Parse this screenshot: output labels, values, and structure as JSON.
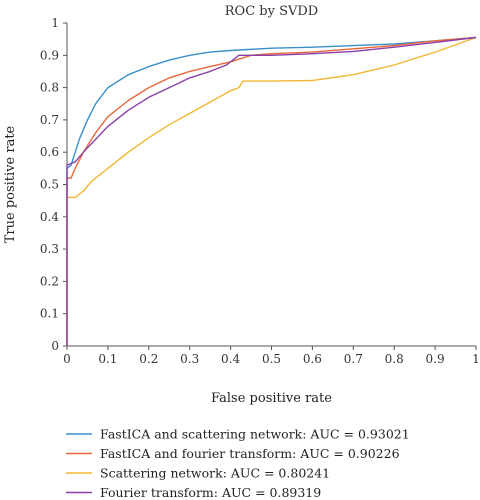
{
  "chart_data": {
    "type": "line",
    "title": "ROC by SVDD",
    "xlabel": "False positive rate",
    "ylabel": "True positive rate",
    "xlim": [
      0,
      1
    ],
    "ylim": [
      0,
      1
    ],
    "x_ticks": [
      "0",
      "0.1",
      "0.2",
      "0.3",
      "0.4",
      "0.5",
      "0.6",
      "0.7",
      "0.8",
      "0.9",
      "1"
    ],
    "y_ticks": [
      "0",
      "0.1",
      "0.2",
      "0.3",
      "0.4",
      "0.5",
      "0.6",
      "0.7",
      "0.8",
      "0.9",
      "1"
    ],
    "grid": false,
    "legend_position": "bottom",
    "series": [
      {
        "name": "FastICA and scattering network: AUC = 0.93021",
        "color": "#3a8fc7",
        "points": [
          [
            0,
            0
          ],
          [
            0,
            0.55
          ],
          [
            0.01,
            0.56
          ],
          [
            0.02,
            0.6
          ],
          [
            0.03,
            0.64
          ],
          [
            0.05,
            0.7
          ],
          [
            0.07,
            0.75
          ],
          [
            0.1,
            0.8
          ],
          [
            0.15,
            0.84
          ],
          [
            0.2,
            0.865
          ],
          [
            0.25,
            0.885
          ],
          [
            0.3,
            0.9
          ],
          [
            0.35,
            0.91
          ],
          [
            0.4,
            0.915
          ],
          [
            0.5,
            0.922
          ],
          [
            0.6,
            0.925
          ],
          [
            0.7,
            0.93
          ],
          [
            0.8,
            0.935
          ],
          [
            0.9,
            0.945
          ],
          [
            1.0,
            0.955
          ]
        ]
      },
      {
        "name": "FastICA and fourier transform: AUC = 0.90226",
        "color": "#e8683a",
        "points": [
          [
            0,
            0
          ],
          [
            0,
            0.52
          ],
          [
            0.01,
            0.52
          ],
          [
            0.02,
            0.55
          ],
          [
            0.04,
            0.6
          ],
          [
            0.07,
            0.66
          ],
          [
            0.1,
            0.71
          ],
          [
            0.15,
            0.76
          ],
          [
            0.2,
            0.8
          ],
          [
            0.25,
            0.83
          ],
          [
            0.3,
            0.85
          ],
          [
            0.35,
            0.865
          ],
          [
            0.4,
            0.88
          ],
          [
            0.45,
            0.9
          ],
          [
            0.5,
            0.905
          ],
          [
            0.6,
            0.91
          ],
          [
            0.7,
            0.92
          ],
          [
            0.8,
            0.93
          ],
          [
            0.9,
            0.945
          ],
          [
            1.0,
            0.955
          ]
        ]
      },
      {
        "name": "Scattering network: AUC = 0.80241",
        "color": "#f2b735",
        "points": [
          [
            0,
            0
          ],
          [
            0,
            0.46
          ],
          [
            0.02,
            0.46
          ],
          [
            0.04,
            0.48
          ],
          [
            0.06,
            0.51
          ],
          [
            0.1,
            0.55
          ],
          [
            0.15,
            0.6
          ],
          [
            0.2,
            0.645
          ],
          [
            0.25,
            0.685
          ],
          [
            0.3,
            0.72
          ],
          [
            0.35,
            0.755
          ],
          [
            0.4,
            0.79
          ],
          [
            0.42,
            0.8
          ],
          [
            0.43,
            0.82
          ],
          [
            0.5,
            0.82
          ],
          [
            0.6,
            0.822
          ],
          [
            0.7,
            0.84
          ],
          [
            0.8,
            0.87
          ],
          [
            0.9,
            0.91
          ],
          [
            1.0,
            0.955
          ]
        ]
      },
      {
        "name": "Fourier transform: AUC = 0.89319",
        "color": "#8b3fa8",
        "points": [
          [
            0,
            0
          ],
          [
            0,
            0.56
          ],
          [
            0.02,
            0.57
          ],
          [
            0.04,
            0.6
          ],
          [
            0.07,
            0.64
          ],
          [
            0.1,
            0.68
          ],
          [
            0.15,
            0.73
          ],
          [
            0.2,
            0.77
          ],
          [
            0.25,
            0.8
          ],
          [
            0.3,
            0.83
          ],
          [
            0.35,
            0.85
          ],
          [
            0.39,
            0.87
          ],
          [
            0.42,
            0.9
          ],
          [
            0.45,
            0.9
          ],
          [
            0.5,
            0.9
          ],
          [
            0.6,
            0.905
          ],
          [
            0.7,
            0.912
          ],
          [
            0.8,
            0.925
          ],
          [
            0.9,
            0.94
          ],
          [
            1.0,
            0.955
          ]
        ]
      }
    ]
  }
}
